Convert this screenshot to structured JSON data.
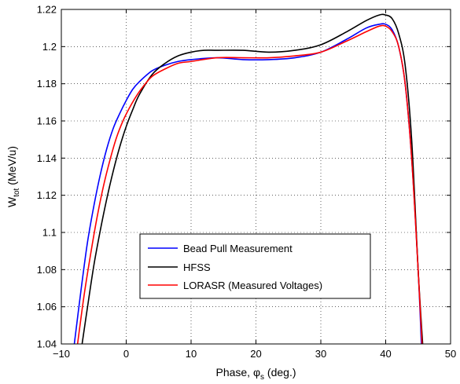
{
  "chart_data": {
    "type": "line",
    "title": "",
    "xlabel": {
      "main": "Phase, ",
      "symbol": "φ",
      "sub": "s",
      "tail": " (deg.)"
    },
    "ylabel": {
      "main": "W",
      "sub": "tot",
      "tail": " (MeV/u)"
    },
    "xlim": [
      -10,
      50
    ],
    "ylim": [
      1.04,
      1.22
    ],
    "xticks": [
      -10,
      0,
      10,
      20,
      30,
      40,
      50
    ],
    "xtick_labels": [
      "−10",
      "0",
      "10",
      "20",
      "30",
      "40",
      "50"
    ],
    "yticks": [
      1.04,
      1.06,
      1.08,
      1.1,
      1.12,
      1.14,
      1.16,
      1.18,
      1.2,
      1.22
    ],
    "ytick_labels": [
      "1.04",
      "1.06",
      "1.08",
      "1.1",
      "1.12",
      "1.14",
      "1.16",
      "1.18",
      "1.2",
      "1.22"
    ],
    "grid": true,
    "legend_position": "lower-center",
    "series": [
      {
        "name": "Bead Pull Measurement",
        "color": "#0000ff",
        "x": [
          -8.0,
          -7.0,
          -6.0,
          -5.0,
          -4.0,
          -3.0,
          -2.0,
          -1.0,
          0.0,
          1.0,
          2.0,
          4.0,
          6.0,
          8.0,
          10.0,
          14.0,
          18.0,
          22.0,
          26.0,
          30.0,
          34.0,
          37.0,
          39.0,
          40.0,
          41.0,
          42.0,
          43.0,
          44.0,
          45.0,
          45.5
        ],
        "y": [
          1.04,
          1.068,
          1.094,
          1.114,
          1.131,
          1.145,
          1.156,
          1.164,
          1.171,
          1.177,
          1.181,
          1.187,
          1.19,
          1.192,
          1.193,
          1.194,
          1.193,
          1.193,
          1.194,
          1.197,
          1.204,
          1.21,
          1.212,
          1.212,
          1.209,
          1.2,
          1.18,
          1.14,
          1.08,
          1.04
        ]
      },
      {
        "name": "HFSS",
        "color": "#000000",
        "x": [
          -6.8,
          -6.0,
          -5.0,
          -4.0,
          -3.0,
          -2.0,
          -1.0,
          0.0,
          1.0,
          2.0,
          4.0,
          6.0,
          8.0,
          10.0,
          12.0,
          14.0,
          18.0,
          22.0,
          26.0,
          30.0,
          34.0,
          37.0,
          39.0,
          40.0,
          41.0,
          42.0,
          43.0,
          44.0,
          45.0,
          45.7
        ],
        "y": [
          1.04,
          1.059,
          1.082,
          1.101,
          1.118,
          1.133,
          1.146,
          1.157,
          1.166,
          1.174,
          1.185,
          1.191,
          1.195,
          1.197,
          1.198,
          1.198,
          1.198,
          1.197,
          1.198,
          1.201,
          1.208,
          1.214,
          1.217,
          1.217,
          1.215,
          1.207,
          1.19,
          1.15,
          1.08,
          1.04
        ]
      },
      {
        "name": "LORASR (Measured Voltages)",
        "color": "#ff0000",
        "x": [
          -7.5,
          -6.5,
          -5.5,
          -4.5,
          -3.5,
          -2.5,
          -1.5,
          -0.5,
          0.5,
          1.5,
          2.5,
          4.0,
          6.0,
          8.0,
          10.0,
          14.0,
          18.0,
          22.0,
          26.0,
          30.0,
          34.0,
          37.0,
          39.0,
          40.0,
          41.0,
          42.0,
          43.0,
          44.0,
          45.0,
          45.6
        ],
        "y": [
          1.04,
          1.066,
          1.088,
          1.108,
          1.125,
          1.139,
          1.151,
          1.16,
          1.167,
          1.173,
          1.178,
          1.184,
          1.188,
          1.191,
          1.192,
          1.194,
          1.194,
          1.194,
          1.195,
          1.197,
          1.203,
          1.208,
          1.211,
          1.211,
          1.208,
          1.2,
          1.18,
          1.14,
          1.08,
          1.04
        ]
      }
    ]
  }
}
